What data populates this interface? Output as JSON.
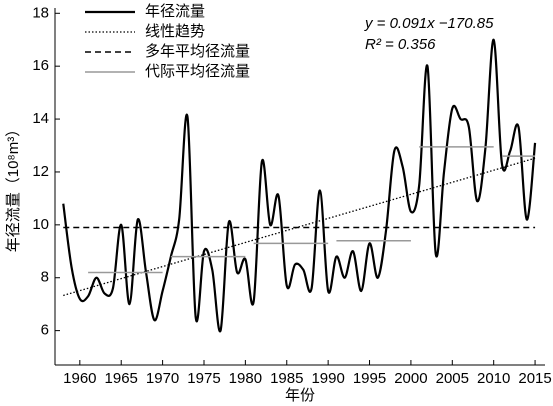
{
  "chart_data": {
    "type": "line",
    "x_label": "年份",
    "y_label": "年径流量（10⁸m³）",
    "annotations": [
      "y = 0.091x −170.85",
      "R² = 0.356"
    ],
    "xlim": [
      1957,
      2016.2
    ],
    "ylim": [
      4.7,
      18.2
    ],
    "xticks": [
      1960,
      1965,
      1970,
      1975,
      1980,
      1985,
      1990,
      1995,
      2000,
      2005,
      2010,
      2015
    ],
    "yticks": [
      6,
      8,
      10,
      12,
      14,
      16,
      18
    ],
    "legend": "upper left",
    "series": [
      {
        "name": "年径流量",
        "color": "#000000",
        "style": "solid",
        "x": [
          1958,
          1959,
          1960,
          1961,
          1962,
          1963,
          1964,
          1965,
          1966,
          1967,
          1968,
          1969,
          1970,
          1971,
          1972,
          1973,
          1974,
          1975,
          1976,
          1977,
          1978,
          1979,
          1980,
          1981,
          1982,
          1983,
          1984,
          1985,
          1986,
          1987,
          1988,
          1989,
          1990,
          1991,
          1992,
          1993,
          1994,
          1995,
          1996,
          1997,
          1998,
          1999,
          2000,
          2001,
          2002,
          2003,
          2004,
          2005,
          2006,
          2007,
          2008,
          2009,
          2010,
          2011,
          2012,
          2013,
          2014,
          2015
        ],
        "values": [
          10.8,
          8.4,
          7.2,
          7.3,
          8.0,
          7.4,
          7.6,
          10.0,
          7.0,
          10.2,
          8.2,
          6.4,
          7.5,
          8.8,
          10.2,
          14.1,
          6.5,
          9.0,
          8.3,
          6.0,
          10.1,
          8.2,
          8.7,
          7.1,
          12.4,
          10.0,
          11.1,
          7.7,
          8.5,
          8.3,
          7.6,
          11.3,
          7.5,
          8.8,
          8.0,
          9.0,
          7.5,
          9.3,
          8.0,
          9.8,
          12.8,
          12.2,
          10.5,
          11.5,
          16.0,
          8.9,
          12.0,
          14.4,
          14.0,
          13.7,
          10.9,
          12.9,
          17.0,
          12.3,
          12.8,
          13.7,
          10.2,
          13.1
        ]
      },
      {
        "name": "线性趋势",
        "color": "#000000",
        "style": "dotted",
        "x": [
          1958,
          2015
        ],
        "values": [
          7.33,
          12.52
        ]
      },
      {
        "name": "多年平均径流量",
        "color": "#000000",
        "style": "dashed",
        "x": [
          1958,
          2015
        ],
        "values": [
          9.9,
          9.9
        ]
      },
      {
        "name": "代际平均径流量",
        "color": "#999999",
        "style": "segments",
        "segments": [
          {
            "x": [
              1961,
              1970
            ],
            "value": 8.2
          },
          {
            "x": [
              1971,
              1980
            ],
            "value": 8.8
          },
          {
            "x": [
              1981,
              1990
            ],
            "value": 9.3
          },
          {
            "x": [
              1991,
              2000
            ],
            "value": 9.4
          },
          {
            "x": [
              2001,
              2010
            ],
            "value": 12.95
          },
          {
            "x": [
              2011,
              2015
            ],
            "value": 12.6
          }
        ]
      }
    ]
  }
}
